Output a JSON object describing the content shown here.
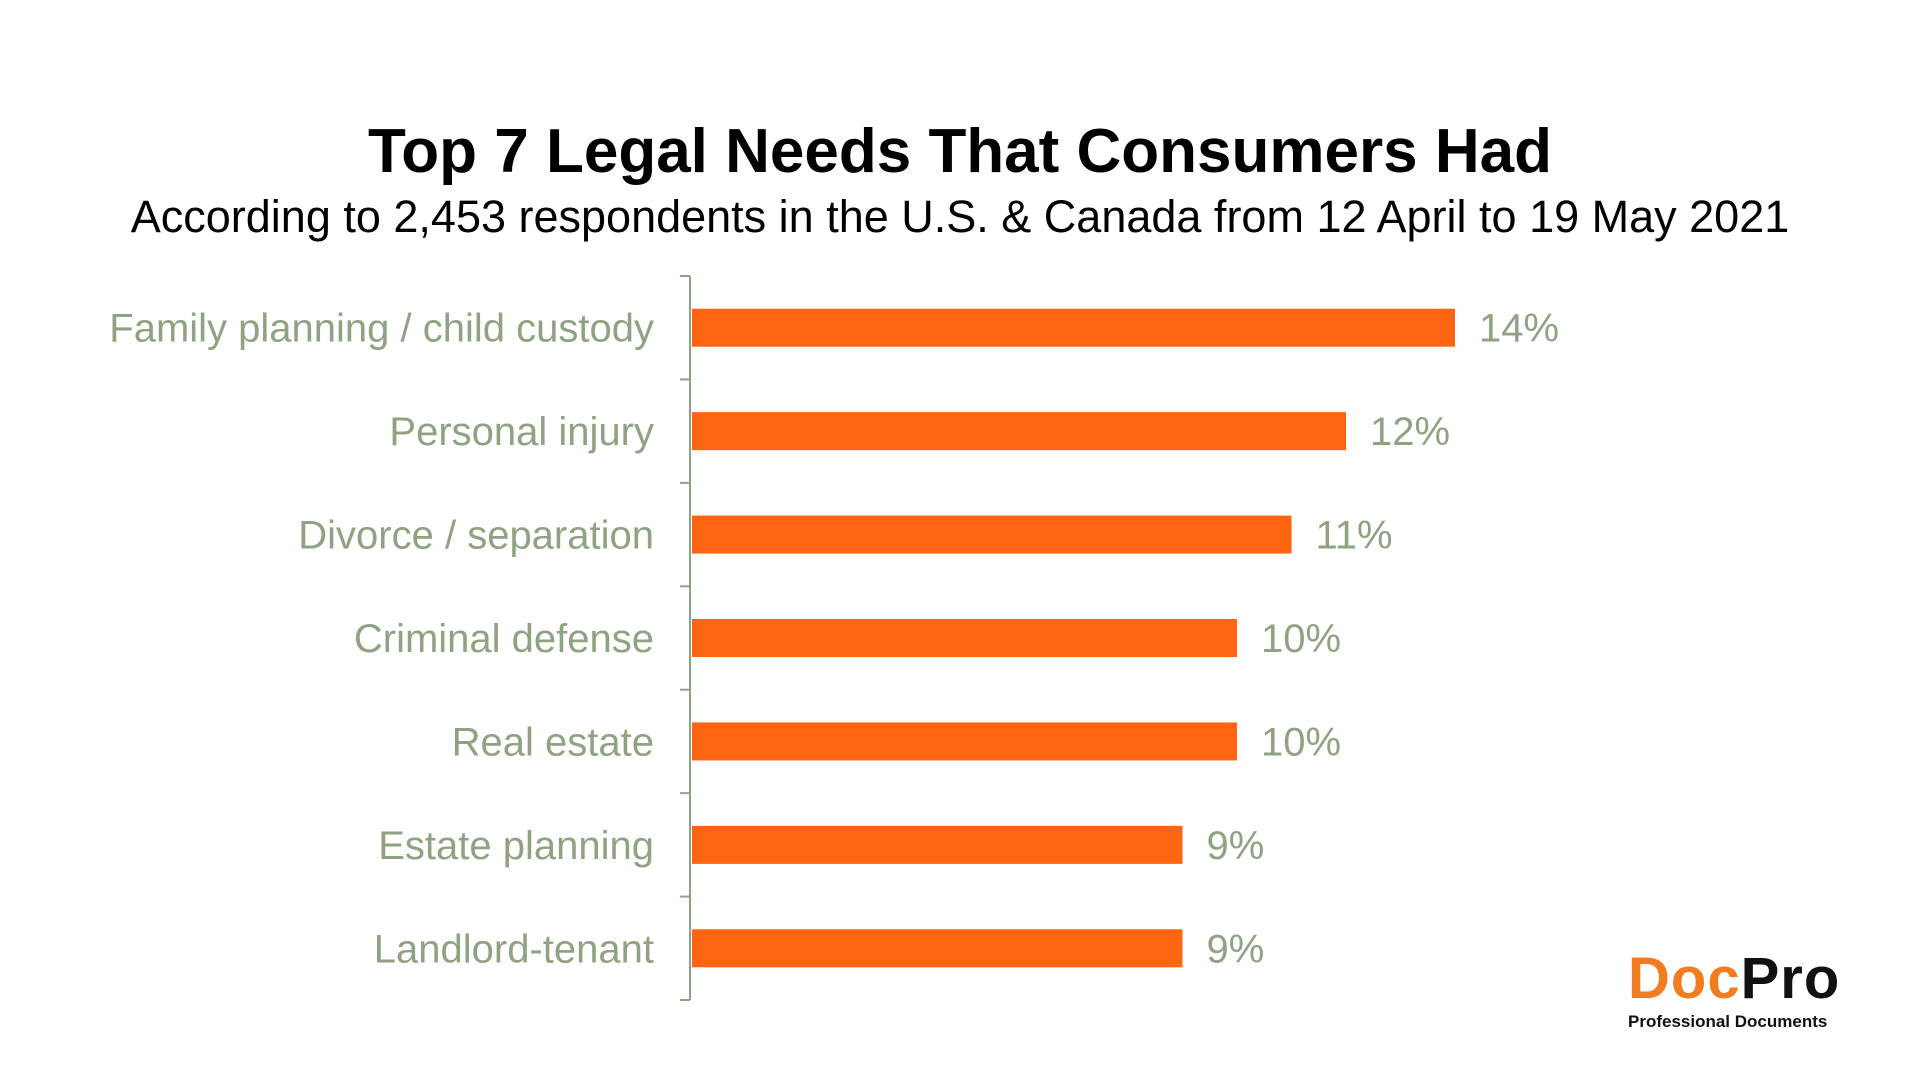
{
  "title": "Top 7 Legal Needs That Consumers Had",
  "subtitle": "According to 2,453 respondents in the U.S. & Canada from 12 April to 19 May 2021",
  "colors": {
    "bar": "#ff6410",
    "category_label": "#8fa383",
    "value_label": "#8fa383",
    "axis": "#8fa383"
  },
  "chart_data": {
    "type": "bar",
    "orientation": "horizontal",
    "categories": [
      "Family planning / child custody",
      "Personal injury",
      "Divorce / separation",
      "Criminal defense",
      "Real estate",
      "Estate planning",
      "Landlord-tenant"
    ],
    "values": [
      14,
      12,
      11,
      10,
      10,
      9,
      9
    ],
    "value_labels": [
      "14%",
      "12%",
      "11%",
      "10%",
      "10%",
      "9%",
      "9%"
    ],
    "xlim": [
      0,
      14
    ],
    "grid": false,
    "legend": "none"
  },
  "logo": {
    "word_doc": "Doc",
    "word_pro": "Pro",
    "tagline": "Professional Documents"
  }
}
